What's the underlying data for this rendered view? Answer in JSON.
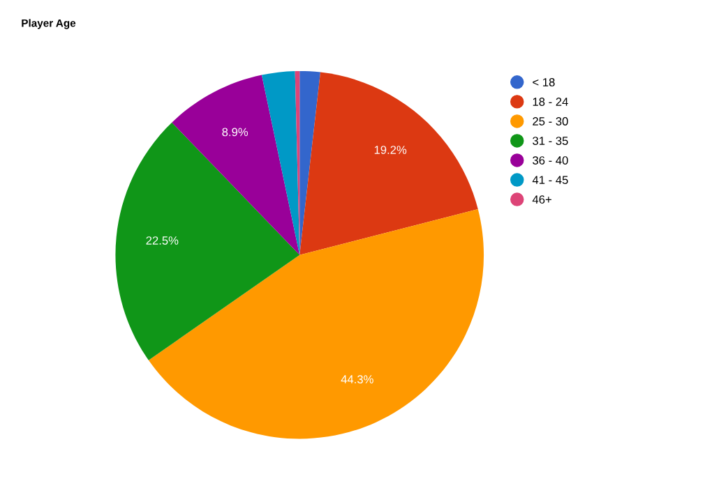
{
  "chart_data": {
    "type": "pie",
    "title": "Player Age",
    "categories": [
      "< 18",
      "18 - 24",
      "25 - 30",
      "31 - 35",
      "36 - 40",
      "41 - 45",
      "46+"
    ],
    "values": [
      1.8,
      19.2,
      44.3,
      22.5,
      8.9,
      2.9,
      0.4
    ],
    "colors": [
      "#3366cc",
      "#dc3912",
      "#ff9900",
      "#109618",
      "#990099",
      "#0099c6",
      "#dd4477"
    ],
    "value_labels": [
      null,
      "19.2%",
      "44.3%",
      "22.5%",
      "8.9%",
      null,
      null
    ],
    "legend": "right"
  }
}
